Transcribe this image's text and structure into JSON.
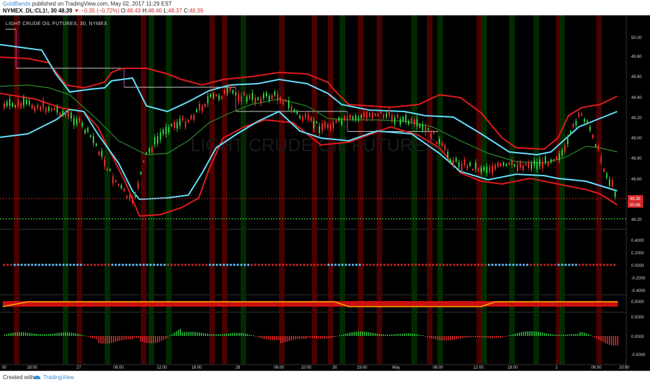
{
  "header": {
    "author": "GoldBands",
    "published": "published on TradingView.com, May 02, 2017 11:29 EST",
    "symbol": "NYMEX_DL:CL1!, 30",
    "last": "48.39",
    "change": "▼ −0.35 (−0.72%)",
    "ohlc_o_label": "O:",
    "ohlc_o": "48.43",
    "ohlc_h_label": "H:",
    "ohlc_h": "48.46",
    "ohlc_l_label": "L:",
    "ohlc_l": "48.37",
    "ohlc_c_label": "C:",
    "ohlc_c": "48.39"
  },
  "chart_title": "LIGHT CRUDE OIL FUTURES, 30, NYMEX",
  "watermark": "LIGHT CRUDE OIL FUTURES",
  "footer": {
    "created": "Created with",
    "brand": "TradingView"
  },
  "colors": {
    "background": "#000000",
    "band_outer": "#e31a1c",
    "band_inner": "#66e0ff",
    "midline": "#2e8b2e",
    "step_line": "#cccccc",
    "step_connector": "#c040c0",
    "candle_up": "#2ecc40",
    "candle_down": "#e52b2b",
    "price_dotted": "#c62828",
    "support_dotted": "#3cc33c",
    "dot_blue": "#66c2ff",
    "dot_red": "#c62828"
  },
  "chart_data": [
    {
      "type": "line",
      "title": "LIGHT CRUDE OIL FUTURES, 30, NYMEX",
      "x_tick_labels": [
        "00",
        "18:00",
        "27",
        "06:00",
        "12:00",
        "18:00",
        "28",
        "06:00",
        "10:00",
        "30",
        "19:00",
        "May",
        "06:00",
        "12:00",
        "18:00",
        "2",
        "06:00",
        "10:00"
      ],
      "y_ticks": [
        "50.00",
        "49.80",
        "49.60",
        "49.40",
        "49.20",
        "49.00",
        "48.80",
        "48.60",
        "48.20"
      ],
      "ylim": [
        48.2,
        50.0
      ],
      "series": [
        {
          "x": [
            0,
            15,
            25,
            35,
            45,
            55,
            65,
            75,
            85,
            95,
            105,
            115
          ],
          "values": [
            49.33,
            49.34,
            49.25,
            49.17,
            49.12,
            49.0,
            48.7,
            48.27,
            48.22,
            48.35,
            48.73,
            49.28
          ]
        },
        {
          "x": [
            0,
            15,
            25,
            35,
            45,
            55,
            65,
            75,
            85,
            95,
            105,
            115
          ],
          "values": [
            49.93,
            49.9,
            49.87,
            49.62,
            49.46,
            49.43,
            49.47,
            49.54,
            49.33,
            49.05,
            48.96,
            49.23
          ]
        },
        {
          "x": [
            0,
            15,
            25,
            35,
            45,
            55,
            65,
            75,
            85,
            95,
            105,
            115
          ],
          "values": [
            49.43,
            49.4,
            49.37,
            49.32,
            49.25,
            49.1,
            48.9,
            48.79,
            48.77,
            48.75,
            48.85,
            49.12
          ]
        },
        {
          "x": [
            0,
            15,
            25,
            35,
            45,
            55,
            65,
            75,
            85,
            95,
            105,
            115
          ],
          "values": [
            49.35,
            49.33,
            49.28,
            49.18,
            49.15,
            49.05,
            48.6,
            48.4,
            48.33,
            48.6,
            48.9,
            49.28
          ]
        },
        {
          "x": [
            0,
            15,
            25,
            35,
            45,
            55,
            65,
            75,
            85,
            95,
            105,
            115
          ],
          "values": [
            49.4,
            49.42,
            49.45,
            49.55,
            49.55,
            49.55,
            49.55,
            49.6,
            49.63,
            49.4,
            49.27,
            49.3
          ]
        }
      ],
      "step_levels": [
        {
          "x": [
            0,
            15
          ],
          "value": 50.0
        },
        {
          "x": [
            15,
            170
          ],
          "value": 49.63
        },
        {
          "x": [
            170,
            330
          ],
          "value": 49.45
        },
        {
          "x": [
            330,
            490
          ],
          "value": 49.22
        },
        {
          "x": [
            490,
            620
          ],
          "value": 49.03
        }
      ],
      "markers": [
        {
          "label": "48.38",
          "value": 48.38
        },
        {
          "label": "00:46",
          "value": 48.3
        }
      ],
      "support_level": 48.2
    },
    {
      "type": "scatter",
      "y_ticks": [
        "0.4000",
        "0.2000",
        "0.0000",
        "-0.2000",
        "-0.4000"
      ],
      "ylim": [
        -0.5,
        0.5
      ],
      "values": [
        0.0
      ]
    },
    {
      "type": "area",
      "y_ticks": [
        "0.0000"
      ],
      "ylim": [
        -0.1,
        0.05
      ]
    },
    {
      "type": "bar",
      "y_ticks": [
        "0.5000",
        "0.0000",
        "-0.5000"
      ],
      "ylim": [
        -0.7,
        0.7
      ]
    }
  ]
}
